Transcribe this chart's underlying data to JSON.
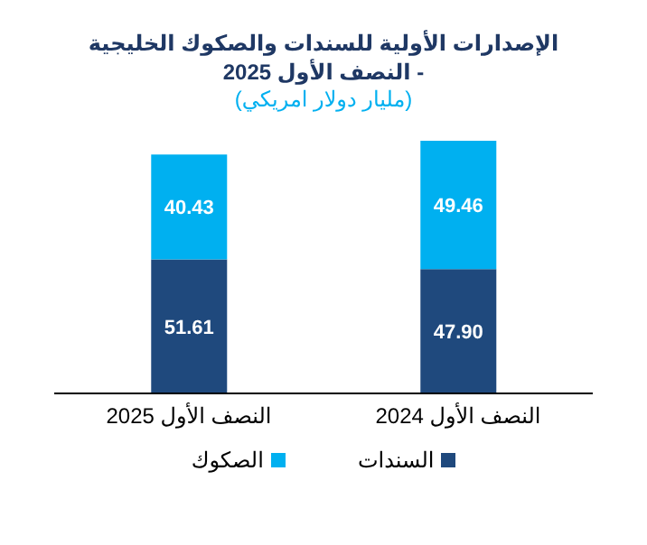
{
  "chart_data": {
    "type": "bar",
    "title": "الإصدارات الأولية للسندات والصكوك الخليجية -  النصف الأول 2025",
    "subtitle": "(مليار دولار امريكي)",
    "categories": [
      "النصف الأول 2025",
      "النصف الأول 2024"
    ],
    "stacked": true,
    "legend": "bottom",
    "grid": false,
    "series": [
      {
        "name": "السندات",
        "color": "#1f497d",
        "values": [
          51.61,
          47.9
        ],
        "value_labels": [
          "51.61",
          "47.90"
        ]
      },
      {
        "name": "الصكوك",
        "color": "#00b0f0",
        "values": [
          40.43,
          49.46
        ],
        "value_labels": [
          "40.43",
          "49.46"
        ]
      }
    ]
  }
}
